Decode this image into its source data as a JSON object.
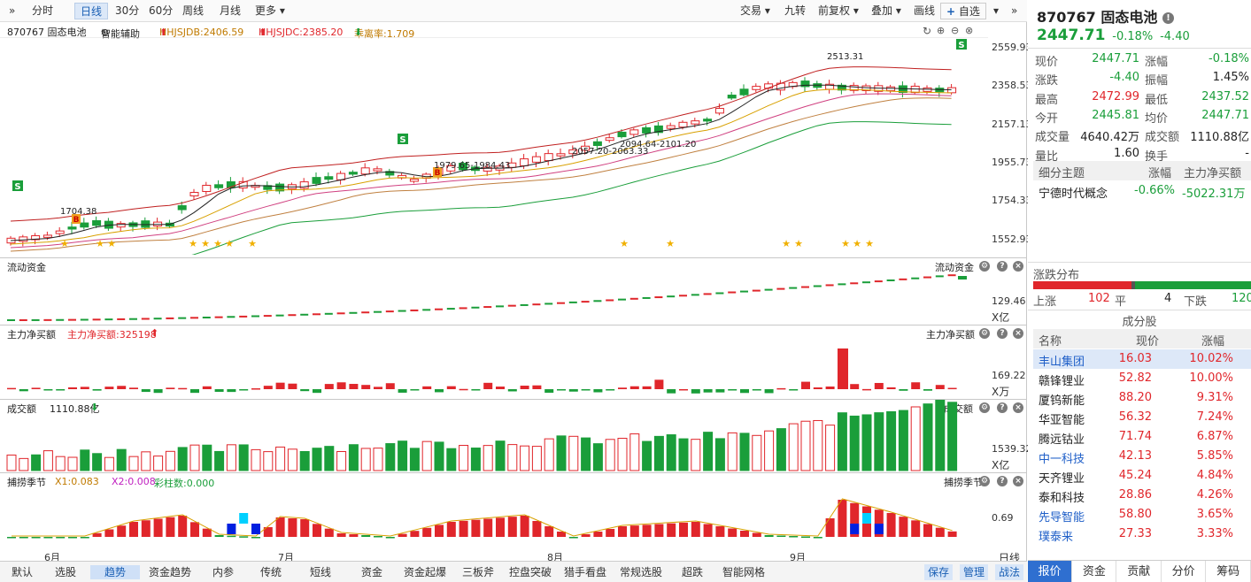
{
  "toolbar": {
    "left_items": [
      "分时",
      "日线",
      "30分",
      "60分",
      "周线",
      "月线",
      "更多"
    ],
    "active": "日线",
    "right_items": [
      "交易",
      "九转",
      "前复权",
      "叠加",
      "画线",
      "自选"
    ]
  },
  "indicator_bar": {
    "code_name": "870767 固态电池",
    "assist": "智能辅助",
    "hhjsjdb": "HHJSJDB:2406.59",
    "hhjsjdc": "HHJSJDC:2385.20",
    "deviation": "乖离率:1.709"
  },
  "main_chart": {
    "y_ticks": [
      "2559.93",
      "2358.53",
      "2157.13",
      "1955.73",
      "1754.33",
      "1552.93"
    ],
    "annotations": [
      "2513.31",
      "1704.38",
      "1979.65-1984.43",
      "2057.20-2063.33",
      "2094.64-2101.20"
    ],
    "signal_labels": {
      "sell": "S",
      "buy": "B"
    },
    "star_glyph": "★"
  },
  "panels": [
    {
      "key": "flow",
      "label": "流动资金",
      "right_label": "流动资金",
      "tick": "129.46",
      "unit": "X亿",
      "extra": ""
    },
    {
      "key": "main_net",
      "label": "主力净买额",
      "right_label": "主力净买额",
      "tick": "169.22",
      "unit": "X万",
      "extra": "主力净买额:325198"
    },
    {
      "key": "turnover",
      "label": "成交额",
      "right_label": "成交额",
      "tick": "1539.32",
      "unit": "X亿",
      "extra": "1110.88亿"
    },
    {
      "key": "season",
      "label": "捕捞季节",
      "right_label": "捕捞季节",
      "tick": "0.69",
      "unit": "",
      "extra": ""
    }
  ],
  "season_values": {
    "x1": "X1:0.083",
    "x2": "X2:0.008",
    "bars": "彩柱数:0.000"
  },
  "x_axis": {
    "labels": [
      "6月",
      "7月",
      "8月",
      "9月"
    ],
    "period_label": "日线"
  },
  "bottom_tabs": [
    "默认",
    "选股",
    "趋势",
    "资金趋势",
    "内参",
    "传统",
    "短线",
    "资金",
    "资金起爆",
    "三板斧",
    "控盘突破",
    "猎手看盘",
    "常规选股",
    "超跌",
    "智能网格"
  ],
  "bottom_active": "趋势",
  "bottom_right": [
    "保存",
    "管理",
    "战法"
  ],
  "quote": {
    "code": "870767",
    "name": "固态电池",
    "price": "2447.71",
    "change_pct": "-0.18%",
    "change": "-4.40",
    "rows": [
      {
        "l1": "现价",
        "v1": "2447.71",
        "l2": "涨幅",
        "v2": "-0.18%",
        "c1": "green",
        "c2": "green"
      },
      {
        "l1": "涨跌",
        "v1": "-4.40",
        "l2": "振幅",
        "v2": "1.45%",
        "c1": "green",
        "c2": "black"
      },
      {
        "l1": "最高",
        "v1": "2472.99",
        "l2": "最低",
        "v2": "2437.52",
        "c1": "red",
        "c2": "green"
      },
      {
        "l1": "今开",
        "v1": "2445.81",
        "l2": "均价",
        "v2": "2447.71",
        "c1": "green",
        "c2": "green"
      },
      {
        "l1": "成交量",
        "v1": "4640.42万",
        "l2": "成交额",
        "v2": "1110.88亿",
        "c1": "black",
        "c2": "black"
      },
      {
        "l1": "量比",
        "v1": "1.60",
        "l2": "换手",
        "v2": "-",
        "c1": "black",
        "c2": "black"
      }
    ]
  },
  "theme": {
    "headers": [
      "细分主题",
      "涨幅",
      "主力净买额"
    ],
    "name": "宁德时代概念",
    "change": "-0.66%",
    "net": "-5022.31万"
  },
  "distribution": {
    "title": "涨跌分布",
    "up_label": "上涨",
    "up": "102",
    "flat_label": "平",
    "flat": "4",
    "down_label": "下跌",
    "down": "120",
    "up_fraction": 0.45,
    "flat_fraction": 0.018
  },
  "constituents": {
    "title": "成分股",
    "headers": [
      "名称",
      "现价",
      "涨幅"
    ],
    "rows": [
      {
        "name": "丰山集团",
        "price": "16.03",
        "pct": "10.02%",
        "name_color": "blue"
      },
      {
        "name": "赣锋锂业",
        "price": "52.82",
        "pct": "10.00%",
        "name_color": "black"
      },
      {
        "name": "厦钨新能",
        "price": "88.20",
        "pct": "9.31%",
        "name_color": "black"
      },
      {
        "name": "华亚智能",
        "price": "56.32",
        "pct": "7.24%",
        "name_color": "black"
      },
      {
        "name": "腾远钴业",
        "price": "71.74",
        "pct": "6.87%",
        "name_color": "black"
      },
      {
        "name": "中一科技",
        "price": "42.13",
        "pct": "5.85%",
        "name_color": "blue"
      },
      {
        "name": "天齐锂业",
        "price": "45.24",
        "pct": "4.84%",
        "name_color": "black"
      },
      {
        "name": "泰和科技",
        "price": "28.86",
        "pct": "4.26%",
        "name_color": "black"
      },
      {
        "name": "先导智能",
        "price": "58.80",
        "pct": "3.65%",
        "name_color": "blue"
      },
      {
        "name": "璞泰来",
        "price": "27.33",
        "pct": "3.33%",
        "name_color": "blue"
      }
    ]
  },
  "right_tabs": [
    "报价",
    "资金",
    "贡献",
    "分价",
    "筹码"
  ],
  "right_active": "报价",
  "colors": {
    "up": "#e0262b",
    "down": "#1a9e3a",
    "accent": "#2f6fd0"
  }
}
